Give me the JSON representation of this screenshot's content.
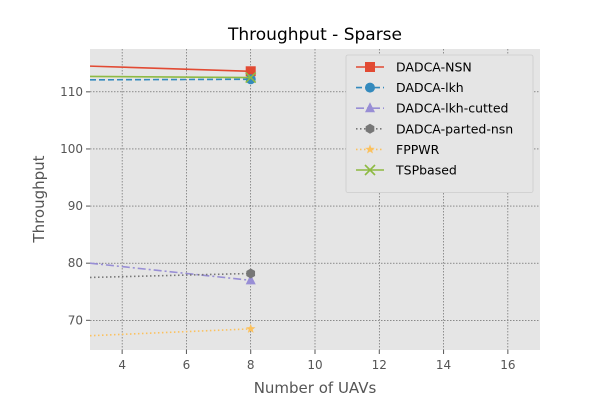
{
  "chart_data": {
    "type": "line",
    "title": "Throughput - Sparse",
    "xlabel": "Number of UAVs",
    "ylabel": "Throughput",
    "xlim": [
      3,
      17
    ],
    "ylim": [
      64.8,
      117.5
    ],
    "xticks": [
      4,
      6,
      8,
      10,
      12,
      14,
      16
    ],
    "yticks": [
      70,
      80,
      90,
      100,
      110
    ],
    "grid": true,
    "legend_position": "top-right",
    "series": [
      {
        "name": "DADCA-NSN",
        "color": "#E24A33",
        "dash": "solid",
        "marker": "square",
        "points": [
          [
            3,
            114.5
          ],
          [
            8,
            113.6
          ]
        ]
      },
      {
        "name": "DADCA-lkh",
        "color": "#348ABD",
        "dash": "dashed",
        "marker": "circle",
        "points": [
          [
            3,
            112.1
          ],
          [
            8,
            112.2
          ]
        ]
      },
      {
        "name": "DADCA-lkh-cutted",
        "color": "#988ED5",
        "dash": "dashdot",
        "marker": "triangle",
        "points": [
          [
            3,
            80.0
          ],
          [
            8,
            77.0
          ]
        ]
      },
      {
        "name": "DADCA-parted-nsn",
        "color": "#777777",
        "dash": "dotted",
        "marker": "hexagon",
        "points": [
          [
            3,
            77.5
          ],
          [
            8,
            78.2
          ]
        ]
      },
      {
        "name": "FPPWR",
        "color": "#FBC15E",
        "dash": "dotted",
        "marker": "star",
        "points": [
          [
            3,
            67.3
          ],
          [
            8,
            68.5
          ]
        ]
      },
      {
        "name": "TSPbased",
        "color": "#8EBA42",
        "dash": "solid",
        "marker": "x",
        "points": [
          [
            3,
            112.7
          ],
          [
            8,
            112.5
          ]
        ]
      }
    ]
  }
}
